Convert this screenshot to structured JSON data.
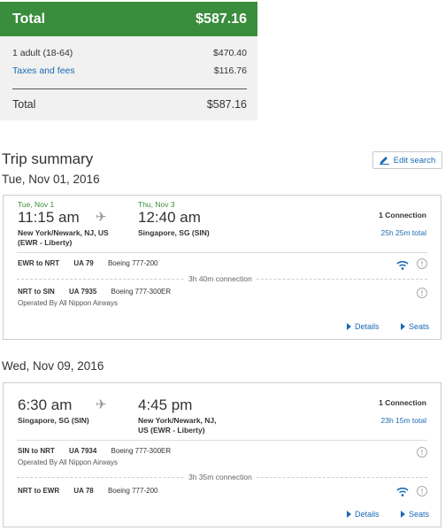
{
  "price": {
    "total_label": "Total",
    "total_amount": "$587.16",
    "adult_label": "1 adult (18-64)",
    "adult_amount": "$470.40",
    "taxes_label": "Taxes and fees",
    "taxes_amount": "$116.76",
    "footer_total_label": "Total",
    "footer_total_amount": "$587.16"
  },
  "trip": {
    "title": "Trip summary",
    "edit_label": "Edit search"
  },
  "outbound": {
    "heading": "Tue, Nov 01, 2016",
    "dep_date": "Tue, Nov 1",
    "dep_time": "11:15 am",
    "dep_place_1": "New York/Newark, NJ, US",
    "dep_place_2": "(EWR - Liberty)",
    "arr_date": "Thu, Nov 3",
    "arr_time": "12:40 am",
    "arr_place_1": "Singapore, SG (SIN)",
    "connections": "1 Connection",
    "duration": "25h 25m total",
    "seg1_route": "EWR to NRT",
    "seg1_flight": "UA 79",
    "seg1_aircraft": "Boeing 777-200",
    "connection_info": "3h 40m connection",
    "seg2_route": "NRT to SIN",
    "seg2_flight": "UA 7935",
    "seg2_aircraft": "Boeing 777-300ER",
    "seg2_operated": "Operated By All Nippon Airways",
    "details_label": "Details",
    "seats_label": "Seats"
  },
  "return": {
    "heading": "Wed, Nov 09, 2016",
    "dep_time": "6:30 am",
    "dep_place_1": "Singapore, SG (SIN)",
    "arr_time": "4:45 pm",
    "arr_place_1": "New York/Newark, NJ,",
    "arr_place_2": "US (EWR - Liberty)",
    "connections": "1 Connection",
    "duration": "23h 15m total",
    "seg1_route": "SIN to NRT",
    "seg1_flight": "UA 7934",
    "seg1_aircraft": "Boeing 777-300ER",
    "seg1_operated": "Operated By All Nippon Airways",
    "connection_info": "3h 35m connection",
    "seg2_route": "NRT to EWR",
    "seg2_flight": "UA 78",
    "seg2_aircraft": "Boeing 777-200",
    "details_label": "Details",
    "seats_label": "Seats"
  },
  "icons": {
    "plane": "airplane-icon",
    "wifi": "wifi-icon",
    "info": "info-icon",
    "edit": "pencil-icon"
  },
  "colors": {
    "brand_green": "#3a8d3c",
    "link_blue": "#1a6ab5"
  }
}
